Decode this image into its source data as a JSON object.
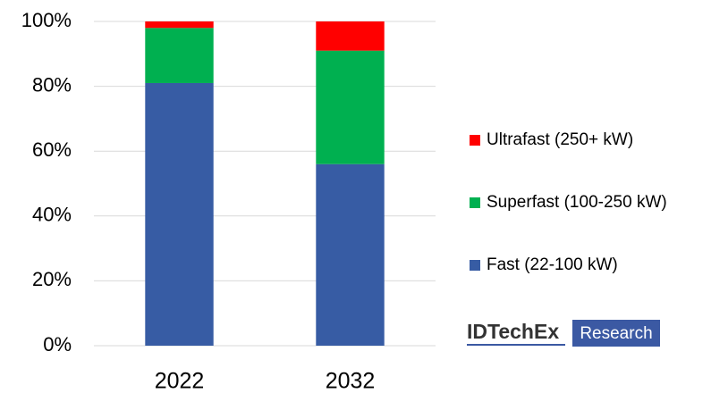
{
  "chart_data": {
    "type": "stacked_bar",
    "categories": [
      "2022",
      "2032"
    ],
    "series": [
      {
        "name": "Fast (22-100 kW)",
        "color": "#375ca4",
        "values": [
          81,
          56
        ]
      },
      {
        "name": "Superfast (100-250 kW)",
        "color": "#00b050",
        "values": [
          17,
          35
        ]
      },
      {
        "name": "Ultrafast (250+ kW)",
        "color": "#ff0000",
        "values": [
          2,
          9
        ]
      }
    ],
    "ylim": [
      0,
      100
    ],
    "yticks": [
      {
        "value": 0,
        "label": "0%"
      },
      {
        "value": 20,
        "label": "20%"
      },
      {
        "value": 40,
        "label": "40%"
      },
      {
        "value": 60,
        "label": "60%"
      },
      {
        "value": 80,
        "label": "80%"
      },
      {
        "value": 100,
        "label": "100%"
      }
    ],
    "grid": true,
    "legend": "right",
    "logo": {
      "brand": "IDTechEx",
      "product": "Research"
    }
  }
}
